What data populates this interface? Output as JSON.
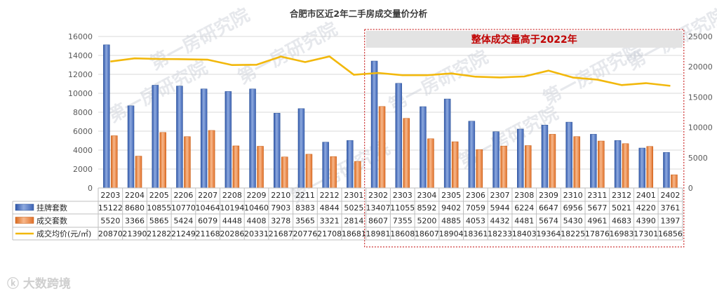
{
  "chart_data": {
    "type": "bar",
    "title": "合肥市区近2年二手房成交量价分析",
    "categories": [
      "2203",
      "2204",
      "2205",
      "2206",
      "2207",
      "2208",
      "2209",
      "2210",
      "2211",
      "2212",
      "2301",
      "2302",
      "2303",
      "2304",
      "2305",
      "2306",
      "2307",
      "2308",
      "2309",
      "2310",
      "2311",
      "2312",
      "2401",
      "2402"
    ],
    "series": [
      {
        "name": "挂牌套数",
        "type": "bar",
        "axis": "left",
        "values": [
          15122,
          8680,
          10855,
          10770,
          10464,
          10194,
          10460,
          7903,
          8383,
          4844,
          5025,
          13407,
          11055,
          8592,
          9402,
          7059,
          5944,
          6224,
          6647,
          6956,
          5677,
          5021,
          4220,
          3761
        ]
      },
      {
        "name": "成交套数",
        "type": "bar",
        "axis": "left",
        "values": [
          5520,
          3366,
          5865,
          5424,
          6079,
          4448,
          4408,
          3278,
          3565,
          3321,
          2814,
          8607,
          7355,
          5200,
          4885,
          4053,
          4432,
          4481,
          5674,
          5430,
          4961,
          4683,
          4390,
          1397
        ]
      },
      {
        "name": "成交均价(元/㎡)",
        "type": "line",
        "axis": "right",
        "values": [
          20870,
          21390,
          21282,
          21249,
          21168,
          20286,
          20331,
          21687,
          20776,
          21708,
          18681,
          18981,
          18608,
          18607,
          18904,
          18361,
          18233,
          18403,
          19364,
          18225,
          17876,
          16983,
          17301,
          16856
        ]
      }
    ],
    "y_left": {
      "ylim": [
        0,
        16000
      ],
      "ticks": [
        0,
        2000,
        4000,
        6000,
        8000,
        10000,
        12000,
        14000,
        16000
      ]
    },
    "y_right": {
      "ylim": [
        0,
        25000
      ],
      "ticks": [
        0,
        5000,
        10000,
        15000,
        20000,
        25000
      ]
    },
    "annotation": {
      "text": "整体成交量高于2022年",
      "from_category": "2302",
      "to_category": "2402"
    },
    "data_table": true,
    "colors": {
      "listing": "#4472c4",
      "deals": "#ed7d31",
      "price": "#f2b80c",
      "annotation": "#c00000"
    }
  },
  "watermark": "第一房研究院",
  "logo": "大数跨境"
}
